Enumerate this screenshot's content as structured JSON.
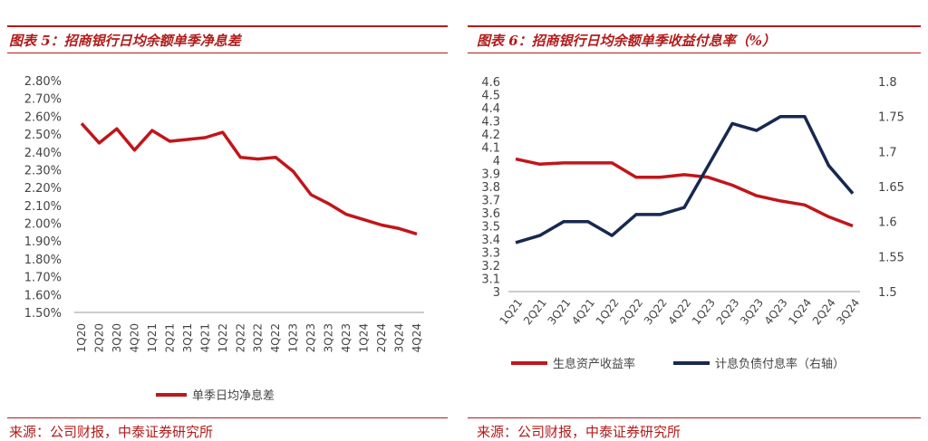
{
  "left": {
    "title": "图表 5：招商银行日均余额单季净息差",
    "source": "来源：公司财报，中泰证券研究所",
    "chart_data": {
      "type": "line",
      "categories": [
        "1Q20",
        "2Q20",
        "3Q20",
        "4Q20",
        "1Q21",
        "2Q21",
        "3Q21",
        "4Q21",
        "1Q22",
        "2Q22",
        "3Q22",
        "4Q22",
        "1Q23",
        "2Q23",
        "3Q23",
        "4Q23",
        "1Q24",
        "2Q24",
        "3Q24",
        "4Q24"
      ],
      "series": [
        {
          "name": "单季日均净息差",
          "color": "#c0161b",
          "values": [
            2.56,
            2.45,
            2.53,
            2.41,
            2.52,
            2.46,
            2.47,
            2.48,
            2.51,
            2.37,
            2.36,
            2.37,
            2.29,
            2.16,
            2.11,
            2.05,
            2.02,
            1.99,
            1.97,
            1.94
          ]
        }
      ],
      "ylim": [
        1.5,
        2.8
      ],
      "yticks": [
        "1.50%",
        "1.60%",
        "1.70%",
        "1.80%",
        "1.90%",
        "2.00%",
        "2.10%",
        "2.20%",
        "2.30%",
        "2.40%",
        "2.50%",
        "2.60%",
        "2.70%",
        "2.80%"
      ],
      "ytick_values": [
        1.5,
        1.6,
        1.7,
        1.8,
        1.9,
        2.0,
        2.1,
        2.2,
        2.3,
        2.4,
        2.5,
        2.6,
        2.7,
        2.8
      ],
      "legend_position": "bottom",
      "grid": false
    }
  },
  "right": {
    "title": "图表 6：招商银行日均余额单季收益付息率（%）",
    "source": "来源：公司财报，中泰证券研究所",
    "chart_data": {
      "type": "line",
      "categories": [
        "1Q21",
        "2Q21",
        "3Q21",
        "4Q21",
        "1Q22",
        "2Q22",
        "3Q22",
        "4Q22",
        "1Q23",
        "2Q23",
        "3Q23",
        "4Q23",
        "1Q24",
        "2Q24",
        "3Q24"
      ],
      "series": [
        {
          "name": "生息资产收益率",
          "axis": "left",
          "color": "#c0161b",
          "values": [
            4.01,
            3.97,
            3.98,
            3.98,
            3.98,
            3.87,
            3.87,
            3.89,
            3.87,
            3.81,
            3.73,
            3.69,
            3.66,
            3.57,
            3.5
          ]
        },
        {
          "name": "计息负债付息率（右轴）",
          "axis": "right",
          "color": "#17294f",
          "values": [
            1.57,
            1.58,
            1.6,
            1.6,
            1.58,
            1.61,
            1.61,
            1.62,
            1.68,
            1.74,
            1.73,
            1.75,
            1.75,
            1.68,
            1.64
          ]
        }
      ],
      "ylim_left": [
        3.0,
        4.6
      ],
      "yticks_left": [
        "3",
        "3.1",
        "3.2",
        "3.3",
        "3.4",
        "3.5",
        "3.6",
        "3.7",
        "3.8",
        "3.9",
        "4",
        "4.1",
        "4.2",
        "4.3",
        "4.4",
        "4.5",
        "4.6"
      ],
      "ytick_values_left": [
        3.0,
        3.1,
        3.2,
        3.3,
        3.4,
        3.5,
        3.6,
        3.7,
        3.8,
        3.9,
        4.0,
        4.1,
        4.2,
        4.3,
        4.4,
        4.5,
        4.6
      ],
      "ylim_right": [
        1.5,
        1.8
      ],
      "yticks_right": [
        "1.5",
        "1.55",
        "1.6",
        "1.65",
        "1.7",
        "1.75",
        "1.8"
      ],
      "ytick_values_right": [
        1.5,
        1.55,
        1.6,
        1.65,
        1.7,
        1.75,
        1.8
      ],
      "legend_position": "bottom",
      "grid": false
    }
  }
}
